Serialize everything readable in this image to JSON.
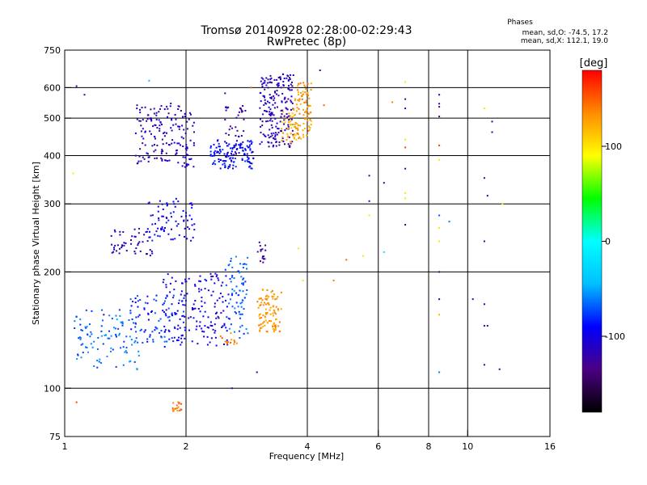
{
  "chart_data": {
    "type": "scatter",
    "title": "Tromsø 20140928 02:28:00-02:29:43",
    "subtitle": "RwPretec (8p)",
    "xlabel": "Frequency [MHz]",
    "ylabel": "Stationary phase Virtual Height [km]",
    "x_scale": "log",
    "y_scale": "log",
    "xlim": [
      1,
      16
    ],
    "ylim": [
      75,
      750
    ],
    "x_ticks": [
      1,
      2,
      4,
      6,
      8,
      10,
      16
    ],
    "x_tick_labels": [
      "1",
      "2",
      "4",
      "6",
      "8",
      "10",
      "16"
    ],
    "y_ticks": [
      75,
      100,
      200,
      300,
      400,
      500,
      600,
      750
    ],
    "y_tick_labels": [
      "75",
      "100",
      "200",
      "300",
      "400",
      "500",
      "600",
      "750"
    ],
    "grid_x": [
      2,
      4,
      6,
      8,
      10
    ],
    "grid_y": [
      100,
      200,
      300,
      400,
      500,
      600
    ],
    "grid": true,
    "stats": {
      "header": "Phases",
      "line_o": "mean, sd,O: -74.5, 17.2",
      "line_x": "mean, sd,X: 112.1, 19.0"
    },
    "colorbar": {
      "unit": "[deg]",
      "range": [
        -180,
        180
      ],
      "ticks": [
        100,
        0,
        -100
      ],
      "tick_labels": [
        "100",
        "0",
        "-100"
      ],
      "colors": [
        "#000000",
        "#4b0082",
        "#0000ff",
        "#00bfff",
        "#00ffff",
        "#00ff00",
        "#ffff00",
        "#ff8c00",
        "#ff0000"
      ]
    },
    "clusters": [
      {
        "f0": 1.5,
        "f1": 1.95,
        "h0": 380,
        "h1": 550,
        "phase": -115,
        "n": 130
      },
      {
        "f0": 1.95,
        "f1": 2.1,
        "h0": 370,
        "h1": 520,
        "phase": -110,
        "n": 40
      },
      {
        "f0": 2.3,
        "f1": 2.95,
        "h0": 370,
        "h1": 440,
        "phase": -90,
        "n": 130
      },
      {
        "f0": 2.5,
        "f1": 2.85,
        "h0": 400,
        "h1": 540,
        "phase": -120,
        "n": 40
      },
      {
        "f0": 3.05,
        "f1": 3.7,
        "h0": 420,
        "h1": 650,
        "phase": -115,
        "n": 200
      },
      {
        "f0": 3.45,
        "f1": 3.8,
        "h0": 430,
        "h1": 520,
        "phase": 120,
        "n": 40
      },
      {
        "f0": 3.7,
        "f1": 4.1,
        "h0": 440,
        "h1": 620,
        "phase": 130,
        "n": 90
      },
      {
        "f0": 1.3,
        "f1": 1.65,
        "h0": 220,
        "h1": 260,
        "phase": -115,
        "n": 50
      },
      {
        "f0": 1.6,
        "f1": 2.1,
        "h0": 240,
        "h1": 310,
        "phase": -95,
        "n": 80
      },
      {
        "f0": 3.0,
        "f1": 3.15,
        "h0": 210,
        "h1": 240,
        "phase": -125,
        "n": 15
      },
      {
        "f0": 1.05,
        "f1": 1.55,
        "h0": 112,
        "h1": 160,
        "phase": -65,
        "n": 110
      },
      {
        "f0": 1.45,
        "f1": 2.0,
        "h0": 130,
        "h1": 175,
        "phase": -80,
        "n": 90
      },
      {
        "f0": 1.75,
        "f1": 2.55,
        "h0": 128,
        "h1": 200,
        "phase": -100,
        "n": 150
      },
      {
        "f0": 2.5,
        "f1": 2.85,
        "h0": 135,
        "h1": 220,
        "phase": -70,
        "n": 80
      },
      {
        "f0": 3.0,
        "f1": 3.45,
        "h0": 140,
        "h1": 180,
        "phase": 130,
        "n": 100
      },
      {
        "f0": 2.4,
        "f1": 2.7,
        "h0": 130,
        "h1": 140,
        "phase": 140,
        "n": 15
      },
      {
        "f0": 1.85,
        "f1": 1.95,
        "h0": 87,
        "h1": 92,
        "phase": 145,
        "n": 20
      }
    ],
    "points": [
      {
        "x": 1.07,
        "y": 605,
        "phase": -120
      },
      {
        "x": 1.12,
        "y": 575,
        "phase": -120
      },
      {
        "x": 1.05,
        "y": 360,
        "phase": 100
      },
      {
        "x": 1.07,
        "y": 92,
        "phase": 160
      },
      {
        "x": 1.62,
        "y": 625,
        "phase": -40
      },
      {
        "x": 2.9,
        "y": 600,
        "phase": 150
      },
      {
        "x": 4.3,
        "y": 665,
        "phase": -120
      },
      {
        "x": 5.7,
        "y": 355,
        "phase": -120
      },
      {
        "x": 5.7,
        "y": 305,
        "phase": -120
      },
      {
        "x": 5.7,
        "y": 280,
        "phase": 100
      },
      {
        "x": 5.5,
        "y": 220,
        "phase": 100
      },
      {
        "x": 6.2,
        "y": 340,
        "phase": -120
      },
      {
        "x": 6.2,
        "y": 225,
        "phase": -20
      },
      {
        "x": 6.5,
        "y": 550,
        "phase": 140
      },
      {
        "x": 7.0,
        "y": 620,
        "phase": 100
      },
      {
        "x": 7.0,
        "y": 560,
        "phase": -120
      },
      {
        "x": 7.0,
        "y": 530,
        "phase": -100
      },
      {
        "x": 7.0,
        "y": 440,
        "phase": 100
      },
      {
        "x": 7.0,
        "y": 420,
        "phase": 160
      },
      {
        "x": 7.0,
        "y": 370,
        "phase": -120
      },
      {
        "x": 7.0,
        "y": 320,
        "phase": 100
      },
      {
        "x": 7.0,
        "y": 310,
        "phase": 100
      },
      {
        "x": 7.0,
        "y": 265,
        "phase": -120
      },
      {
        "x": 8.5,
        "y": 575,
        "phase": -120
      },
      {
        "x": 8.5,
        "y": 545,
        "phase": -140
      },
      {
        "x": 8.5,
        "y": 535,
        "phase": -140
      },
      {
        "x": 8.5,
        "y": 505,
        "phase": -140
      },
      {
        "x": 8.5,
        "y": 425,
        "phase": 160
      },
      {
        "x": 8.5,
        "y": 390,
        "phase": 100
      },
      {
        "x": 8.5,
        "y": 280,
        "phase": -70
      },
      {
        "x": 8.5,
        "y": 260,
        "phase": 100
      },
      {
        "x": 8.5,
        "y": 240,
        "phase": 100
      },
      {
        "x": 8.5,
        "y": 200,
        "phase": -140
      },
      {
        "x": 8.5,
        "y": 170,
        "phase": -120
      },
      {
        "x": 8.5,
        "y": 155,
        "phase": 120
      },
      {
        "x": 8.5,
        "y": 110,
        "phase": -60
      },
      {
        "x": 9.0,
        "y": 270,
        "phase": -60
      },
      {
        "x": 11.0,
        "y": 530,
        "phase": 100
      },
      {
        "x": 11.0,
        "y": 350,
        "phase": -120
      },
      {
        "x": 11.0,
        "y": 240,
        "phase": -120
      },
      {
        "x": 11.0,
        "y": 165,
        "phase": -120
      },
      {
        "x": 11.0,
        "y": 145,
        "phase": -120
      },
      {
        "x": 11.0,
        "y": 115,
        "phase": -140
      },
      {
        "x": 11.2,
        "y": 315,
        "phase": -120
      },
      {
        "x": 11.5,
        "y": 490,
        "phase": -100
      },
      {
        "x": 11.5,
        "y": 460,
        "phase": -120
      },
      {
        "x": 11.2,
        "y": 145,
        "phase": -140
      },
      {
        "x": 10.3,
        "y": 170,
        "phase": -120
      },
      {
        "x": 12.0,
        "y": 112,
        "phase": -120
      },
      {
        "x": 12.2,
        "y": 300,
        "phase": 100
      },
      {
        "x": 4.65,
        "y": 190,
        "phase": 140
      },
      {
        "x": 5.0,
        "y": 215,
        "phase": 150
      },
      {
        "x": 3.8,
        "y": 230,
        "phase": 100
      },
      {
        "x": 3.9,
        "y": 190,
        "phase": 100
      },
      {
        "x": 2.5,
        "y": 580,
        "phase": -120
      },
      {
        "x": 2.6,
        "y": 100,
        "phase": -120
      },
      {
        "x": 3.0,
        "y": 110,
        "phase": -120
      },
      {
        "x": 1.25,
        "y": 155,
        "phase": -120
      },
      {
        "x": 4.4,
        "y": 540,
        "phase": 150
      }
    ]
  }
}
